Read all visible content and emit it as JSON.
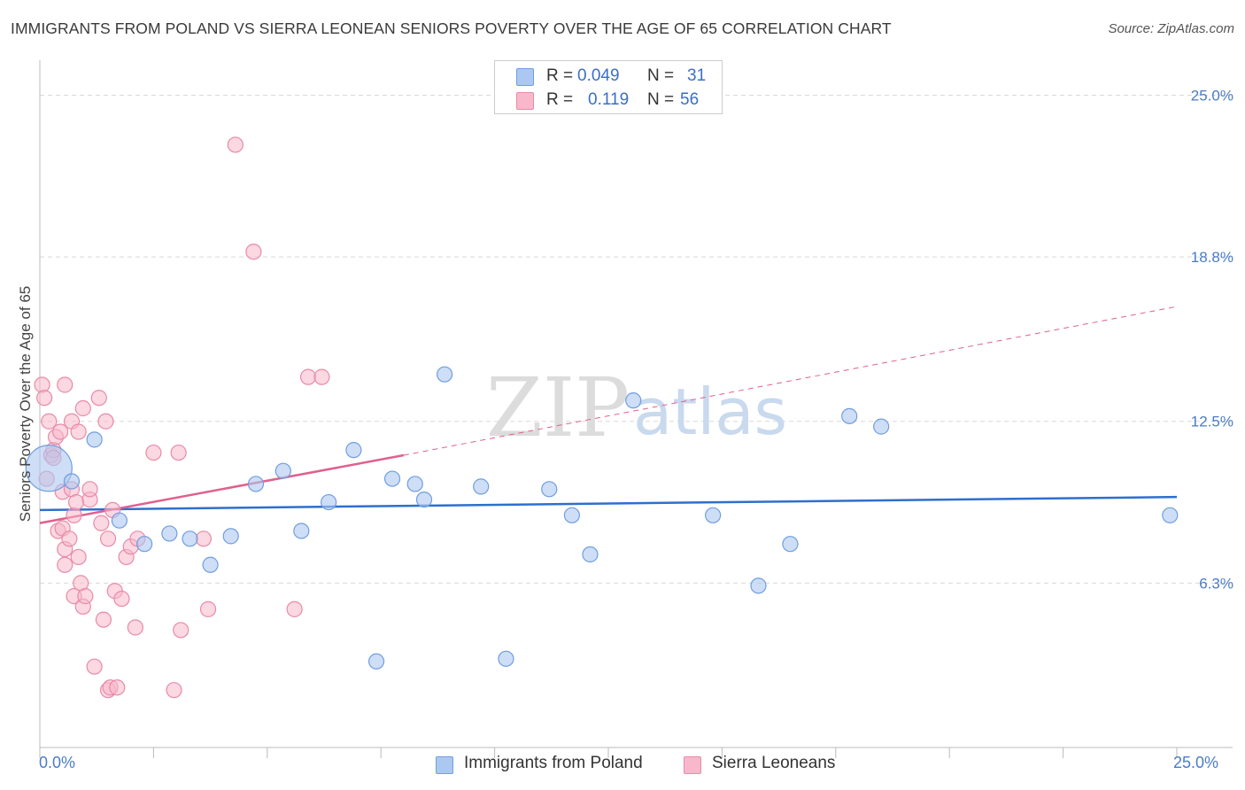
{
  "title": "IMMIGRANTS FROM POLAND VS SIERRA LEONEAN SENIORS POVERTY OVER THE AGE OF 65 CORRELATION CHART",
  "source": "Source: ZipAtlas.com",
  "watermark": {
    "zip": "ZIP",
    "atlas": "atlas"
  },
  "legend": {
    "r_label": "R =",
    "n_label": "N =",
    "rows": [
      {
        "r": "0.049",
        "n": "31"
      },
      {
        "r": "0.119",
        "n": "56"
      }
    ]
  },
  "colors": {
    "series1_fill": "#adc8f0",
    "series1_stroke": "#6f9ee0",
    "series1_line": "#2e6fce",
    "series2_fill": "#f7b8cb",
    "series2_stroke": "#e98aa8",
    "series2_line": "#e0608e",
    "grid": "#d9d9d9",
    "tick_text": "#4a7cc7"
  },
  "chart_data": {
    "type": "scatter",
    "title": "IMMIGRANTS FROM POLAND VS SIERRA LEONEAN SENIORS POVERTY OVER THE AGE OF 65 CORRELATION CHART",
    "xlabel": "",
    "ylabel": "Seniors Poverty Over the Age of 65",
    "xlim": [
      0,
      25
    ],
    "ylim": [
      0,
      26
    ],
    "x_tick_labels": [
      "0.0%",
      "25.0%"
    ],
    "y_ticks": [
      6.3,
      12.5,
      18.8,
      25.0
    ],
    "y_tick_labels": [
      "6.3%",
      "12.5%",
      "18.8%",
      "25.0%"
    ],
    "grid": true,
    "legend_position": "top-center",
    "series": [
      {
        "name": "Immigrants from Poland",
        "r": 0.049,
        "n": 31,
        "trend": {
          "x": [
            0,
            25
          ],
          "y": [
            9.1,
            9.6
          ],
          "style": "solid"
        },
        "points": [
          {
            "x": 0.2,
            "y": 10.7,
            "big": true
          },
          {
            "x": 0.7,
            "y": 10.2
          },
          {
            "x": 1.2,
            "y": 11.8
          },
          {
            "x": 1.75,
            "y": 8.7
          },
          {
            "x": 2.3,
            "y": 7.8
          },
          {
            "x": 2.85,
            "y": 8.2
          },
          {
            "x": 3.3,
            "y": 8.0
          },
          {
            "x": 3.75,
            "y": 7.0
          },
          {
            "x": 4.2,
            "y": 8.1
          },
          {
            "x": 4.75,
            "y": 10.1
          },
          {
            "x": 5.35,
            "y": 10.6
          },
          {
            "x": 5.75,
            "y": 8.3
          },
          {
            "x": 6.35,
            "y": 9.4
          },
          {
            "x": 6.9,
            "y": 11.4
          },
          {
            "x": 7.4,
            "y": 3.3
          },
          {
            "x": 7.75,
            "y": 10.3
          },
          {
            "x": 8.25,
            "y": 10.1
          },
          {
            "x": 8.45,
            "y": 9.5
          },
          {
            "x": 8.9,
            "y": 14.3
          },
          {
            "x": 9.7,
            "y": 10.0
          },
          {
            "x": 10.25,
            "y": 3.4
          },
          {
            "x": 11.2,
            "y": 9.9
          },
          {
            "x": 11.7,
            "y": 8.9
          },
          {
            "x": 12.1,
            "y": 7.4
          },
          {
            "x": 13.05,
            "y": 13.3
          },
          {
            "x": 14.8,
            "y": 8.9
          },
          {
            "x": 15.8,
            "y": 6.2
          },
          {
            "x": 16.5,
            "y": 7.8
          },
          {
            "x": 17.8,
            "y": 12.7
          },
          {
            "x": 18.5,
            "y": 12.3
          },
          {
            "x": 24.85,
            "y": 8.9
          }
        ]
      },
      {
        "name": "Sierra Leoneans",
        "r": 0.119,
        "n": 56,
        "trend": {
          "x": [
            0,
            8.0
          ],
          "y": [
            8.6,
            11.2
          ],
          "style": "solid"
        },
        "trend_dashed": {
          "x": [
            8.0,
            25
          ],
          "y": [
            11.2,
            16.9
          ],
          "style": "dashed"
        },
        "points": [
          {
            "x": 0.05,
            "y": 13.9
          },
          {
            "x": 0.1,
            "y": 13.4
          },
          {
            "x": 0.15,
            "y": 10.3
          },
          {
            "x": 0.2,
            "y": 12.5
          },
          {
            "x": 0.25,
            "y": 11.2
          },
          {
            "x": 0.3,
            "y": 11.4
          },
          {
            "x": 0.3,
            "y": 11.1
          },
          {
            "x": 0.35,
            "y": 11.9
          },
          {
            "x": 0.4,
            "y": 8.3
          },
          {
            "x": 0.45,
            "y": 12.1
          },
          {
            "x": 0.5,
            "y": 9.8
          },
          {
            "x": 0.5,
            "y": 8.4
          },
          {
            "x": 0.55,
            "y": 13.9
          },
          {
            "x": 0.55,
            "y": 7.6
          },
          {
            "x": 0.55,
            "y": 7.0
          },
          {
            "x": 0.65,
            "y": 8.0
          },
          {
            "x": 0.7,
            "y": 12.5
          },
          {
            "x": 0.7,
            "y": 9.9
          },
          {
            "x": 0.75,
            "y": 8.9
          },
          {
            "x": 0.75,
            "y": 5.8
          },
          {
            "x": 0.8,
            "y": 9.4
          },
          {
            "x": 0.85,
            "y": 7.3
          },
          {
            "x": 0.85,
            "y": 12.1
          },
          {
            "x": 0.9,
            "y": 6.3
          },
          {
            "x": 0.95,
            "y": 13.0
          },
          {
            "x": 0.95,
            "y": 5.4
          },
          {
            "x": 1.0,
            "y": 5.8
          },
          {
            "x": 1.1,
            "y": 9.5
          },
          {
            "x": 1.1,
            "y": 9.9
          },
          {
            "x": 1.2,
            "y": 3.1
          },
          {
            "x": 1.3,
            "y": 13.4
          },
          {
            "x": 1.35,
            "y": 8.6
          },
          {
            "x": 1.4,
            "y": 4.9
          },
          {
            "x": 1.45,
            "y": 12.5
          },
          {
            "x": 1.5,
            "y": 8.0
          },
          {
            "x": 1.5,
            "y": 2.2
          },
          {
            "x": 1.55,
            "y": 2.3
          },
          {
            "x": 1.6,
            "y": 9.1
          },
          {
            "x": 1.65,
            "y": 6.0
          },
          {
            "x": 1.7,
            "y": 2.3
          },
          {
            "x": 1.8,
            "y": 5.7
          },
          {
            "x": 1.9,
            "y": 7.3
          },
          {
            "x": 2.0,
            "y": 7.7
          },
          {
            "x": 2.1,
            "y": 4.6
          },
          {
            "x": 2.15,
            "y": 8.0
          },
          {
            "x": 2.5,
            "y": 11.3
          },
          {
            "x": 2.95,
            "y": 2.2
          },
          {
            "x": 3.05,
            "y": 11.3
          },
          {
            "x": 3.1,
            "y": 4.5
          },
          {
            "x": 3.6,
            "y": 8.0
          },
          {
            "x": 3.7,
            "y": 5.3
          },
          {
            "x": 4.3,
            "y": 23.1
          },
          {
            "x": 4.7,
            "y": 19.0
          },
          {
            "x": 5.6,
            "y": 5.3
          },
          {
            "x": 5.9,
            "y": 14.2
          },
          {
            "x": 6.2,
            "y": 14.2
          }
        ]
      }
    ]
  }
}
